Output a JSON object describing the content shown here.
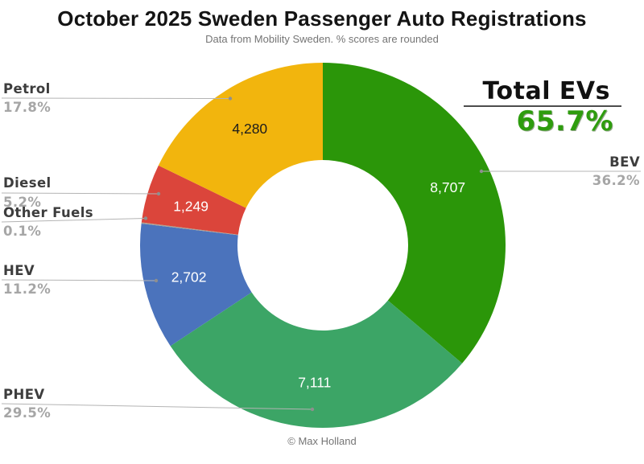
{
  "page": {
    "title": "October 2025 Sweden Passenger Auto Registrations",
    "subtitle": "Data from Mobility Sweden. % scores are rounded",
    "credit": "© Max Holland"
  },
  "total_evs": {
    "label": "Total EVs",
    "pct_label": "65.7%"
  },
  "colors": {
    "accent_green": "#2E9C0E",
    "callout_name": "#3D3D3D",
    "callout_pct": "#A6A6A6",
    "leader_line": "#B4B4B4"
  },
  "chart_data": {
    "type": "pie",
    "variant": "donut",
    "title": "October 2025 Sweden Passenger Auto Registrations",
    "subtitle": "Data from Mobility Sweden. % scores are rounded",
    "direction": "clockwise",
    "start_angle_deg": 0,
    "hole_ratio": 0.47,
    "total_evs_pct": 65.7,
    "segments": [
      {
        "name": "BEV",
        "value": 8707,
        "value_label": "8,707",
        "pct": 36.2,
        "pct_label": "36.2%",
        "color": "#2B9609",
        "value_text_color": "#FFFFFF"
      },
      {
        "name": "PHEV",
        "value": 7111,
        "value_label": "7,111",
        "pct": 29.5,
        "pct_label": "29.5%",
        "color": "#3CA566",
        "value_text_color": "#FFFFFF"
      },
      {
        "name": "HEV",
        "value": 2702,
        "value_label": "2,702",
        "pct": 11.2,
        "pct_label": "11.2%",
        "color": "#4B73BC",
        "value_text_color": "#FFFFFF"
      },
      {
        "name": "Other Fuels",
        "value": null,
        "value_label": "",
        "pct": 0.1,
        "pct_label": "0.1%",
        "color": "#A9A194",
        "value_text_color": ""
      },
      {
        "name": "Diesel",
        "value": 1249,
        "value_label": "1,249",
        "pct": 5.2,
        "pct_label": "5.2%",
        "color": "#DB453B",
        "value_text_color": "#FFFFFF"
      },
      {
        "name": "Petrol",
        "value": 4280,
        "value_label": "4,280",
        "pct": 17.8,
        "pct_label": "17.8%",
        "color": "#F2B50D",
        "value_text_color": "#1C1C1C"
      }
    ]
  }
}
